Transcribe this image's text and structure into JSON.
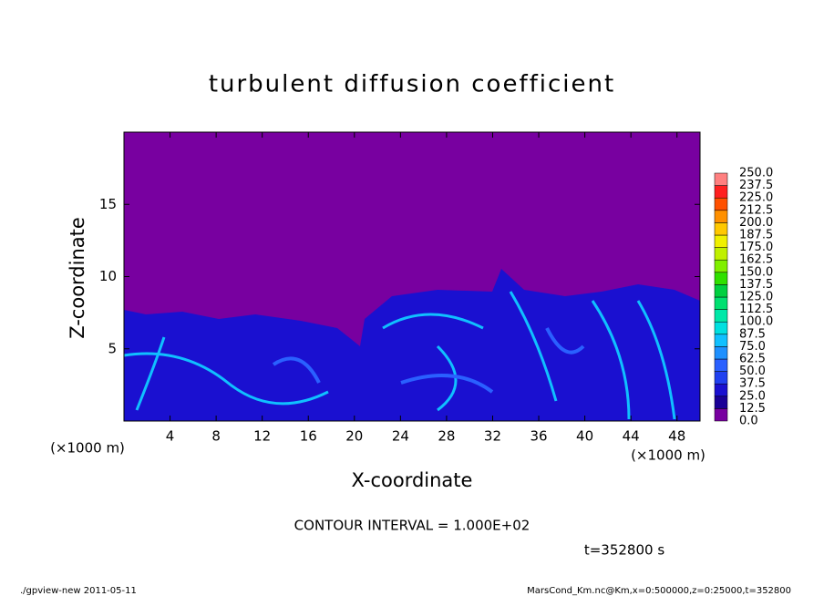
{
  "chart_data": {
    "type": "contour",
    "title": "turbulent diffusion coefficient",
    "x_label": "X-coordinate",
    "y_label": "Z-coordinate",
    "x_unit": "(×1000 m)",
    "y_unit": "(×1000 m)",
    "xlim": [
      0,
      50
    ],
    "xticks": [
      4,
      8,
      12,
      16,
      20,
      24,
      28,
      32,
      36,
      40,
      44,
      48
    ],
    "ylim": [
      0,
      20
    ],
    "yticks": [
      5,
      10,
      15
    ],
    "colorbar": {
      "levels": [
        {
          "value": 0,
          "label": "0.0"
        },
        12.5,
        {
          "value": 25,
          "label": "25.0"
        },
        37.5,
        {
          "value": 50,
          "label": "50.0"
        },
        62.5,
        {
          "value": 75,
          "label": "75.0"
        },
        87.5,
        {
          "value": 100,
          "label": "100.0"
        },
        112.5,
        {
          "value": 125,
          "label": "125.0"
        },
        137.5,
        {
          "value": 150,
          "label": "150.0"
        },
        162.5,
        {
          "value": 175,
          "label": "175.0"
        },
        187.5,
        {
          "value": 200,
          "label": "200.0"
        },
        212.5,
        {
          "value": 225,
          "label": "225.0"
        },
        237.5,
        {
          "value": 250,
          "label": "250.0"
        }
      ],
      "colors": [
        "#7800a0",
        "#1a0096",
        "#1a10d0",
        "#2040f0",
        "#2a60ff",
        "#1e90ff",
        "#10c0ff",
        "#00e0e0",
        "#00e8a8",
        "#00e070",
        "#00d040",
        "#30e000",
        "#80f000",
        "#c0f000",
        "#f0f000",
        "#ffc800",
        "#ff9000",
        "#ff5000",
        "#ff2020",
        "#ff8080"
      ]
    },
    "contour_interval": "CONTOUR INTERVAL = 1.000E+02",
    "time_label": "t=352800 s"
  },
  "footer": {
    "left": "./gpview-new  2011-05-11",
    "right": "MarsCond_Km.nc@Km,x=0:500000,z=0:25000,t=352800"
  }
}
